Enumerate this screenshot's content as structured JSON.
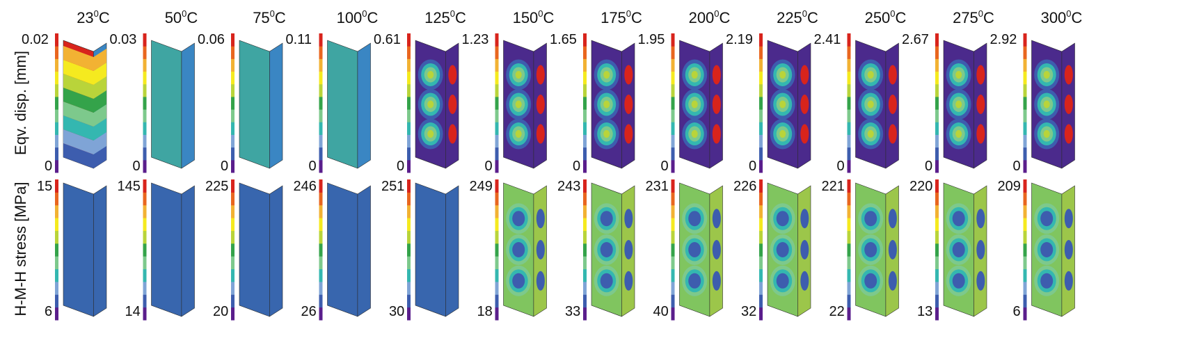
{
  "colors": {
    "scale": [
      "#5a1e8c",
      "#3d5dae",
      "#7fa4d6",
      "#34b7b0",
      "#7dc98c",
      "#34a34a",
      "#b9d43a",
      "#f5ea1f",
      "#f2b233",
      "#e9661f",
      "#d8241c"
    ],
    "frame_disp": [
      "#3fa5a2",
      "#3a86c3",
      "#a8cf4d",
      "#e2c43a"
    ],
    "frame_stress": [
      "#37b6b3",
      "#3866ae",
      "#80c55f",
      "#9cc64a"
    ]
  },
  "panel_temps": [
    {
      "value": "23",
      "unit": "C"
    },
    {
      "value": "50",
      "unit": "C"
    },
    {
      "value": "75",
      "unit": "C"
    },
    {
      "value": "100",
      "unit": "C"
    },
    {
      "value": "125",
      "unit": "C"
    },
    {
      "value": "150",
      "unit": "C"
    },
    {
      "value": "175",
      "unit": "C"
    },
    {
      "value": "200",
      "unit": "C"
    },
    {
      "value": "225",
      "unit": "C"
    },
    {
      "value": "250",
      "unit": "C"
    },
    {
      "value": "275",
      "unit": "C"
    },
    {
      "value": "300",
      "unit": "C"
    }
  ],
  "rows": [
    {
      "label": "Eqv. disp. [mm]",
      "max": [
        "0.02",
        "0.03",
        "0.06",
        "0.11",
        "0.61",
        "1.23",
        "1.65",
        "1.95",
        "2.19",
        "2.41",
        "2.67",
        "2.92"
      ],
      "min": [
        "0",
        "0",
        "0",
        "0",
        "0",
        "0",
        "0",
        "0",
        "0",
        "0",
        "0",
        "0"
      ]
    },
    {
      "label": "H-M-H stress [MPa]",
      "max": [
        "15",
        "145",
        "225",
        "246",
        "251",
        "249",
        "243",
        "231",
        "226",
        "221",
        "220",
        "209"
      ],
      "min": [
        "6",
        "14",
        "20",
        "26",
        "30",
        "18",
        "33",
        "40",
        "32",
        "22",
        "13",
        "6"
      ]
    }
  ]
}
